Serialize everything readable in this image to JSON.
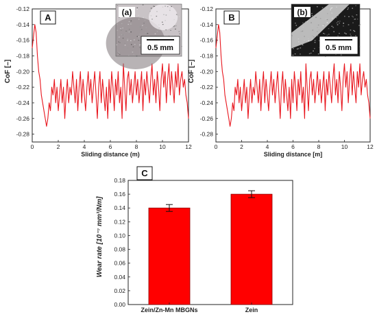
{
  "colors": {
    "series": "#e8141c",
    "axis": "#222222",
    "bar": "#ff0000"
  },
  "chart_data": [
    {
      "type": "line",
      "panel": "A",
      "inset": {
        "label": "(a)",
        "scale_bar": "0.5 mm",
        "texture": "light-micrograph"
      },
      "xlabel": "Sliding distance (m)",
      "ylabel": "CoF [–]",
      "xlim": [
        0,
        12
      ],
      "ylim": [
        -0.29,
        -0.12
      ],
      "xticks": [
        0,
        2,
        4,
        6,
        8,
        10,
        12
      ],
      "yticks": [
        -0.28,
        -0.26,
        -0.24,
        -0.22,
        -0.2,
        -0.18,
        -0.16,
        -0.14,
        -0.12
      ],
      "series": [
        {
          "x": [
            0,
            0.2,
            0.3,
            0.4,
            0.5,
            0.6,
            0.7,
            0.8,
            0.9,
            1.0,
            1.1,
            1.2,
            1.3,
            1.4,
            1.5,
            1.6,
            1.7,
            1.8,
            1.9,
            2.0,
            2.1,
            2.2,
            2.3,
            2.4,
            2.5,
            2.6,
            2.7,
            2.8,
            2.9,
            3.0,
            3.1,
            3.2,
            3.3,
            3.4,
            3.5,
            3.6,
            3.7,
            3.8,
            3.9,
            4.0,
            4.1,
            4.2,
            4.3,
            4.4,
            4.5,
            4.6,
            4.7,
            4.8,
            4.9,
            5.0,
            5.1,
            5.2,
            5.3,
            5.4,
            5.5,
            5.6,
            5.7,
            5.8,
            5.9,
            6.0,
            6.1,
            6.2,
            6.3,
            6.4,
            6.5,
            6.6,
            6.7,
            6.8,
            6.9,
            7.0,
            7.1,
            7.2,
            7.3,
            7.4,
            7.5,
            7.6,
            7.7,
            7.8,
            7.9,
            8.0,
            8.1,
            8.2,
            8.3,
            8.4,
            8.5,
            8.6,
            8.7,
            8.8,
            8.9,
            9.0,
            9.1,
            9.2,
            9.3,
            9.4,
            9.5,
            9.6,
            9.7,
            9.8,
            9.9,
            10.0,
            10.1,
            10.2,
            10.3,
            10.4,
            10.5,
            10.6,
            10.7,
            10.8,
            10.9,
            11.0,
            11.1,
            11.2,
            11.3,
            11.4,
            11.5,
            11.6,
            11.7,
            11.8,
            11.9,
            12.0
          ],
          "y": [
            -0.17,
            -0.14,
            -0.15,
            -0.18,
            -0.2,
            -0.21,
            -0.23,
            -0.24,
            -0.25,
            -0.26,
            -0.27,
            -0.26,
            -0.24,
            -0.25,
            -0.22,
            -0.23,
            -0.21,
            -0.24,
            -0.22,
            -0.25,
            -0.23,
            -0.21,
            -0.24,
            -0.22,
            -0.26,
            -0.23,
            -0.21,
            -0.24,
            -0.22,
            -0.23,
            -0.2,
            -0.22,
            -0.24,
            -0.21,
            -0.25,
            -0.22,
            -0.2,
            -0.24,
            -0.21,
            -0.23,
            -0.25,
            -0.22,
            -0.2,
            -0.23,
            -0.21,
            -0.24,
            -0.22,
            -0.2,
            -0.23,
            -0.26,
            -0.22,
            -0.2,
            -0.24,
            -0.21,
            -0.23,
            -0.25,
            -0.22,
            -0.26,
            -0.21,
            -0.24,
            -0.2,
            -0.22,
            -0.25,
            -0.21,
            -0.23,
            -0.2,
            -0.24,
            -0.22,
            -0.26,
            -0.19,
            -0.22,
            -0.25,
            -0.21,
            -0.2,
            -0.23,
            -0.21,
            -0.24,
            -0.22,
            -0.2,
            -0.23,
            -0.21,
            -0.24,
            -0.22,
            -0.2,
            -0.25,
            -0.21,
            -0.23,
            -0.2,
            -0.22,
            -0.24,
            -0.21,
            -0.19,
            -0.23,
            -0.21,
            -0.24,
            -0.2,
            -0.22,
            -0.25,
            -0.21,
            -0.19,
            -0.22,
            -0.2,
            -0.24,
            -0.21,
            -0.19,
            -0.23,
            -0.2,
            -0.22,
            -0.24,
            -0.2,
            -0.22,
            -0.19,
            -0.23,
            -0.21,
            -0.2,
            -0.22,
            -0.21,
            -0.23,
            -0.24,
            -0.26
          ]
        }
      ]
    },
    {
      "type": "line",
      "panel": "B",
      "inset": {
        "label": "(b)",
        "scale_bar": "0.5 mm",
        "texture": "dark-micrograph"
      },
      "xlabel": "Sliding distance [m]",
      "ylabel": "CoF [–]",
      "xlim": [
        0,
        12
      ],
      "ylim": [
        -0.29,
        -0.12
      ],
      "xticks": [
        0,
        2,
        4,
        6,
        8,
        10,
        12
      ],
      "yticks": [
        -0.28,
        -0.26,
        -0.24,
        -0.22,
        -0.2,
        -0.18,
        -0.16,
        -0.14,
        -0.12
      ],
      "series": [
        {
          "x": [
            0,
            0.2,
            0.3,
            0.4,
            0.5,
            0.6,
            0.7,
            0.8,
            0.9,
            1.0,
            1.1,
            1.2,
            1.3,
            1.4,
            1.5,
            1.6,
            1.7,
            1.8,
            1.9,
            2.0,
            2.1,
            2.2,
            2.3,
            2.4,
            2.5,
            2.6,
            2.7,
            2.8,
            2.9,
            3.0,
            3.1,
            3.2,
            3.3,
            3.4,
            3.5,
            3.6,
            3.7,
            3.8,
            3.9,
            4.0,
            4.1,
            4.2,
            4.3,
            4.4,
            4.5,
            4.6,
            4.7,
            4.8,
            4.9,
            5.0,
            5.1,
            5.2,
            5.3,
            5.4,
            5.5,
            5.6,
            5.7,
            5.8,
            5.9,
            6.0,
            6.1,
            6.2,
            6.3,
            6.4,
            6.5,
            6.6,
            6.7,
            6.8,
            6.9,
            7.0,
            7.1,
            7.2,
            7.3,
            7.4,
            7.5,
            7.6,
            7.7,
            7.8,
            7.9,
            8.0,
            8.1,
            8.2,
            8.3,
            8.4,
            8.5,
            8.6,
            8.7,
            8.8,
            8.9,
            9.0,
            9.1,
            9.2,
            9.3,
            9.4,
            9.5,
            9.6,
            9.7,
            9.8,
            9.9,
            10.0,
            10.1,
            10.2,
            10.3,
            10.4,
            10.5,
            10.6,
            10.7,
            10.8,
            10.9,
            11.0,
            11.1,
            11.2,
            11.3,
            11.4,
            11.5,
            11.6,
            11.7,
            11.8,
            11.9,
            12.0
          ],
          "y": [
            -0.17,
            -0.14,
            -0.15,
            -0.18,
            -0.2,
            -0.21,
            -0.23,
            -0.24,
            -0.25,
            -0.26,
            -0.27,
            -0.26,
            -0.24,
            -0.25,
            -0.22,
            -0.23,
            -0.21,
            -0.24,
            -0.22,
            -0.25,
            -0.23,
            -0.21,
            -0.24,
            -0.22,
            -0.26,
            -0.23,
            -0.21,
            -0.24,
            -0.22,
            -0.23,
            -0.2,
            -0.22,
            -0.24,
            -0.21,
            -0.25,
            -0.22,
            -0.2,
            -0.24,
            -0.21,
            -0.23,
            -0.25,
            -0.22,
            -0.2,
            -0.23,
            -0.21,
            -0.24,
            -0.22,
            -0.2,
            -0.23,
            -0.26,
            -0.22,
            -0.2,
            -0.24,
            -0.21,
            -0.23,
            -0.25,
            -0.22,
            -0.26,
            -0.21,
            -0.24,
            -0.2,
            -0.22,
            -0.25,
            -0.21,
            -0.23,
            -0.2,
            -0.24,
            -0.22,
            -0.26,
            -0.19,
            -0.22,
            -0.25,
            -0.21,
            -0.2,
            -0.23,
            -0.21,
            -0.24,
            -0.22,
            -0.2,
            -0.23,
            -0.21,
            -0.24,
            -0.22,
            -0.2,
            -0.25,
            -0.21,
            -0.23,
            -0.2,
            -0.22,
            -0.24,
            -0.21,
            -0.19,
            -0.23,
            -0.21,
            -0.24,
            -0.2,
            -0.22,
            -0.25,
            -0.21,
            -0.19,
            -0.22,
            -0.2,
            -0.24,
            -0.21,
            -0.19,
            -0.23,
            -0.2,
            -0.22,
            -0.24,
            -0.2,
            -0.22,
            -0.19,
            -0.23,
            -0.21,
            -0.2,
            -0.22,
            -0.21,
            -0.23,
            -0.24,
            -0.26
          ]
        }
      ]
    },
    {
      "type": "bar",
      "panel": "C",
      "categories": [
        "Zein/Zn-Mn MBGNs",
        "Zein"
      ],
      "values": [
        0.14,
        0.16
      ],
      "errors": [
        0.005,
        0.005
      ],
      "ylabel": "Wear rate [10⁻⁷ mm³/Nm]",
      "ylim": [
        0,
        0.18
      ],
      "yticks": [
        0.0,
        0.02,
        0.04,
        0.06,
        0.08,
        0.1,
        0.12,
        0.14,
        0.16,
        0.18
      ],
      "ytick_labels": [
        "0.00",
        "0.02",
        "0.04",
        "0.06",
        "0.08",
        "0.10",
        "0.12",
        "0.14",
        "0.16",
        "0.18"
      ]
    }
  ]
}
